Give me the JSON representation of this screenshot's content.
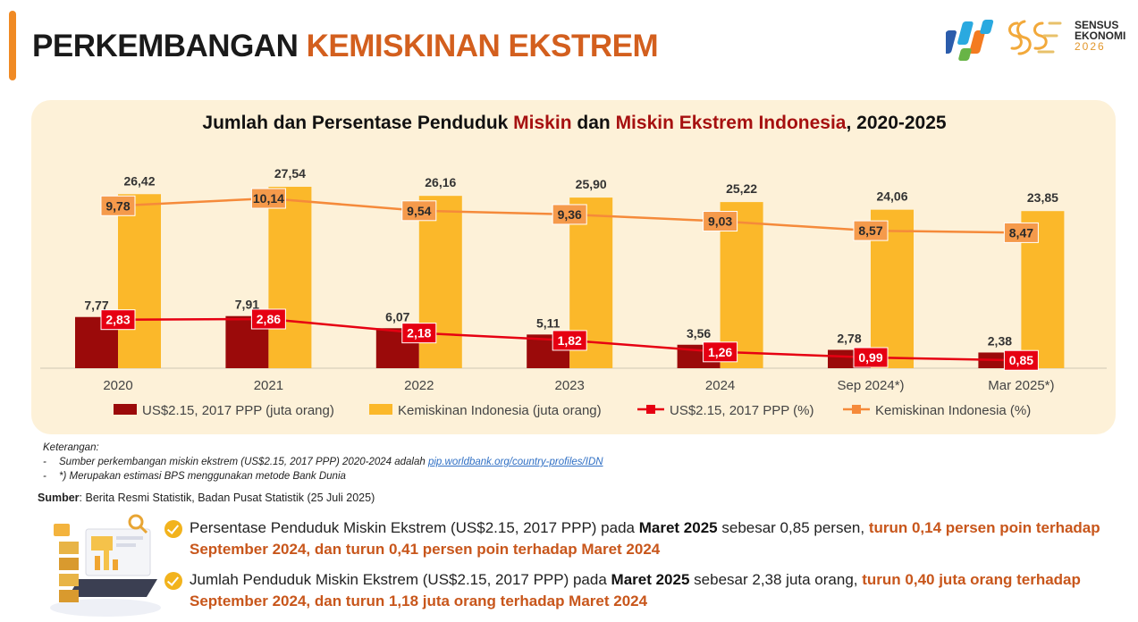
{
  "header": {
    "title_part1": "PERKEMBANGAN",
    "title_part2": "KEMISKINAN EKSTREM",
    "logo": {
      "line1": "SENSUS",
      "line2": "EKONOMI",
      "line3": "2026"
    }
  },
  "chart_title": {
    "prefix": "Jumlah dan Persentase Penduduk",
    "red1": "Miskin",
    "middle": "dan",
    "red2": "Miskin Ekstrem Indonesia",
    "suffix": ", 2020-2025"
  },
  "chart_data": {
    "type": "bar",
    "title": "Jumlah dan Persentase Penduduk Miskin dan Miskin Ekstrem Indonesia, 2020-2025",
    "categories": [
      "2020",
      "2021",
      "2022",
      "2023",
      "2024",
      "Sep 2024*)",
      "Mar 2025*)"
    ],
    "series": [
      {
        "name": "US$2.15, 2017 PPP (juta orang)",
        "kind": "bar",
        "color": "#9b0a0a",
        "values": [
          7.77,
          7.91,
          6.07,
          5.11,
          3.56,
          2.78,
          2.38
        ],
        "labels": [
          "7,77",
          "7,91",
          "6,07",
          "5,11",
          "3,56",
          "2,78",
          "2,38"
        ]
      },
      {
        "name": "Kemiskinan Indonesia (juta orang)",
        "kind": "bar",
        "color": "#fbb82a",
        "values": [
          26.42,
          27.54,
          26.16,
          25.9,
          25.22,
          24.06,
          23.85
        ],
        "labels": [
          "26,42",
          "27,54",
          "26,16",
          "25,90",
          "25,22",
          "24,06",
          "23,85"
        ]
      },
      {
        "name": "US$2.15, 2017 PPP (%)",
        "kind": "line",
        "color": "#e60012",
        "values": [
          2.83,
          2.86,
          2.18,
          1.82,
          1.26,
          0.99,
          0.85
        ],
        "labels": [
          "2,83",
          "2,86",
          "2,18",
          "1,82",
          "1,26",
          "0,99",
          "0,85"
        ]
      },
      {
        "name": "Kemiskinan Indonesia (%)",
        "kind": "line",
        "color": "#f58a3a",
        "values": [
          9.78,
          10.14,
          9.54,
          9.36,
          9.03,
          8.57,
          8.47
        ],
        "labels": [
          "9,78",
          "10,14",
          "9,54",
          "9,36",
          "9,03",
          "8,57",
          "8,47"
        ]
      }
    ],
    "grid": false,
    "legend_position": "bottom"
  },
  "notes": {
    "heading": "Keterangan:",
    "items": [
      {
        "dash": "-",
        "text": "Sumber perkembangan miskin ekstrem (US$2.15, 2017 PPP) 2020-2024 adalah",
        "link": "pip.worldbank.org/country-profiles/IDN"
      },
      {
        "dash": "-",
        "text": "*) Merupakan estimasi BPS menggunakan metode Bank Dunia"
      }
    ]
  },
  "source": {
    "label": "Sumber",
    "text": ": Berita Resmi Statistik, Badan Pusat Statistik (25 Juli 2025)"
  },
  "bullets": [
    {
      "pre": "Persentase Penduduk Miskin Ekstrem (US$2.15, 2017 PPP) pada",
      "bold": "Maret 2025",
      "mid": "sebesar 0,85 persen,",
      "highlight": "turun 0,14 persen poin terhadap September 2024, dan turun 0,41 persen poin terhadap Maret 2024"
    },
    {
      "pre": "Jumlah Penduduk Miskin Ekstrem (US$2.15, 2017 PPP) pada",
      "bold": "Maret 2025",
      "mid": "sebesar 2,38 juta orang,",
      "highlight": "turun 0,40 juta orang terhadap September 2024, dan turun 1,18 juta orang terhadap Maret 2024"
    }
  ],
  "colors": {
    "accent": "#f08a24",
    "title_orange": "#d35f1e",
    "panel_bg": "#fdf1d8",
    "highlight": "#c8561b"
  }
}
